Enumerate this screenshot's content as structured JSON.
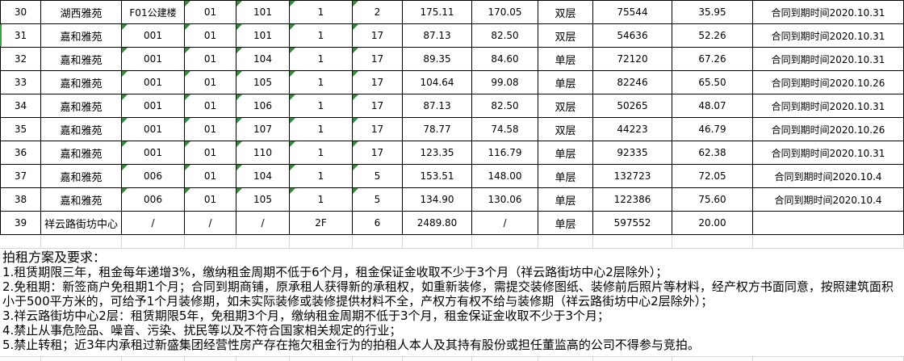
{
  "table": {
    "rows": [
      {
        "num": "30",
        "cells": [
          "湖西雅苑",
          "F01公建楼",
          "01",
          "101",
          "1",
          "2",
          "175.11",
          "170.05",
          "双层",
          "75544",
          "35.95",
          "合同到期时间2020.10.31"
        ],
        "flags": [
          2,
          3,
          4,
          5
        ]
      },
      {
        "num": "31",
        "cells": [
          "嘉和雅苑",
          "001",
          "01",
          "101",
          "1",
          "17",
          "87.13",
          "82.50",
          "双层",
          "54636",
          "52.26",
          "合同到期时间2020.10.31"
        ],
        "flags": [
          1,
          2,
          3,
          4,
          5
        ]
      },
      {
        "num": "32",
        "cells": [
          "嘉和雅苑",
          "001",
          "01",
          "104",
          "1",
          "17",
          "89.35",
          "84.60",
          "单层",
          "72120",
          "67.26",
          "合同到期时间2020.10.31"
        ],
        "flags": [
          1,
          2,
          3,
          4,
          5
        ]
      },
      {
        "num": "33",
        "cells": [
          "嘉和雅苑",
          "001",
          "01",
          "105",
          "1",
          "17",
          "104.64",
          "99.08",
          "单层",
          "82246",
          "65.50",
          "合同到期时间2020.10.26"
        ],
        "flags": [
          1,
          2,
          3,
          4,
          5
        ]
      },
      {
        "num": "34",
        "cells": [
          "嘉和雅苑",
          "001",
          "01",
          "106",
          "1",
          "17",
          "87.13",
          "82.50",
          "双层",
          "50265",
          "48.07",
          "合同到期时间2020.10.31"
        ],
        "flags": [
          1,
          2,
          3,
          4,
          5
        ]
      },
      {
        "num": "35",
        "cells": [
          "嘉和雅苑",
          "001",
          "01",
          "107",
          "1",
          "17",
          "78.77",
          "74.58",
          "双层",
          "44223",
          "46.79",
          "合同到期时间2020.10.26"
        ],
        "flags": [
          1,
          2,
          3,
          4,
          5
        ]
      },
      {
        "num": "36",
        "cells": [
          "嘉和雅苑",
          "001",
          "01",
          "110",
          "1",
          "17",
          "123.35",
          "116.79",
          "单层",
          "92335",
          "62.38",
          "合同到期时间2020.10.31"
        ],
        "flags": [
          1,
          2,
          3,
          4,
          5
        ]
      },
      {
        "num": "37",
        "cells": [
          "嘉和雅苑",
          "006",
          "01",
          "104",
          "1",
          "5",
          "153.51",
          "148.00",
          "单层",
          "132723",
          "72.05",
          "合同到期时间2020.10.4"
        ],
        "flags": [
          1,
          2,
          3,
          4,
          5
        ]
      },
      {
        "num": "38",
        "cells": [
          "嘉和雅苑",
          "006",
          "01",
          "105",
          "1",
          "5",
          "134.90",
          "130.06",
          "单层",
          "122386",
          "75.60",
          "合同到期时间2020.10.4"
        ],
        "flags": [
          1,
          2,
          3,
          4,
          5
        ]
      },
      {
        "num": "39",
        "cells": [
          "祥云路街坊中心",
          "/",
          "/",
          "/",
          "2F",
          "6",
          "2489.80",
          "/",
          "单层",
          "597552",
          "20.00",
          ""
        ],
        "flags": []
      }
    ]
  },
  "notes": {
    "title": "拍租方案及要求：",
    "lines": [
      "1.租赁期限三年，租金每年递增3%，缴纳租金周期不低于6个月，租金保证金收取不少于3个月（祥云路街坊中心2层除外）；",
      "2.免租期：新签商户免租期1个月；合同到期商铺，原承租人获得新的承租权，如重新装修，需提交装修图纸、装修前后照片等材料，经产权方书面同意，按照建筑面积",
      "小于500平方米的，可给予1个月装修期，如未实际装修或装修提供材料不全，产权方有权不给与装修期（祥云路街坊中心2层除外）；",
      "3.祥云路街坊中心2层：租赁期限5年，免租期3个月，缴纳租金周期不低于3个月，租金保证金收取不少于3个月；",
      "4.禁止从事危险品、噪音、污染、扰民等以及不符合国家相关规定的行业；",
      "5.禁止转租；近3年内承租过新盛集团经营性房产存在拖欠租金行为的拍租人本人及其持有股份或担任董监高的公司不得参与竞拍。"
    ]
  },
  "icons": {
    "error_flag": "green-corner-triangle"
  },
  "colors": {
    "flag_green": "#2a9235",
    "grid_black": "#000000",
    "grid_gray": "#d6d6d6",
    "row_marker_green": "#3c9e46"
  }
}
